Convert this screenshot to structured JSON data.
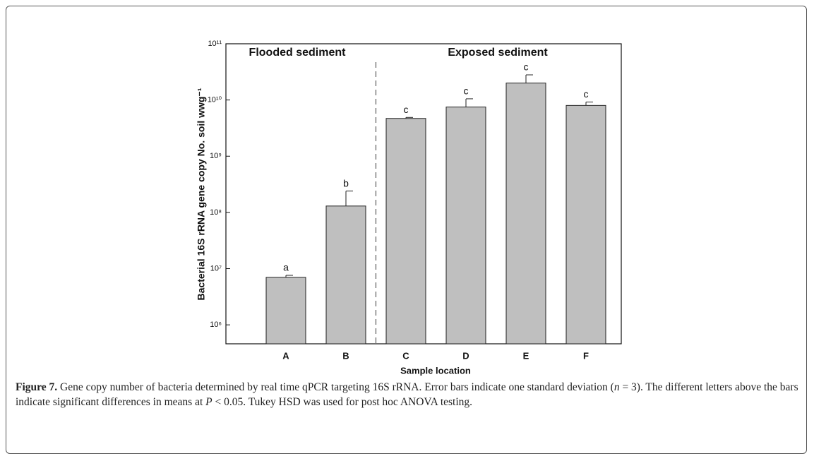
{
  "chart_data": {
    "type": "bar",
    "group_labels": [
      "Flooded sediment",
      "Exposed sediment"
    ],
    "x_label": "Sample location",
    "y_label": "Bacterial 16S rRNA gene copy No. soil wwg⁻¹",
    "categories": [
      "A",
      "B",
      "C",
      "D",
      "E",
      "F"
    ],
    "values": [
      7000000,
      130000000,
      4700000000,
      7500000000,
      20000000000,
      8000000000
    ],
    "errors": [
      600000,
      110000000,
      200000000,
      3000000000,
      8000000000,
      1200000000
    ],
    "annotations": [
      "a",
      "b",
      "c",
      "c",
      "c",
      "c"
    ],
    "color": "#bfbfbf",
    "log_scale": true,
    "ylim": [
      460000,
      100000000000
    ],
    "yticks": [
      {
        "value": 1000000,
        "label": "10⁶"
      },
      {
        "value": 10000000,
        "label": "10⁷"
      },
      {
        "value": 100000000,
        "label": "10⁸"
      },
      {
        "value": 1000000000,
        "label": "10⁹"
      },
      {
        "value": 10000000000,
        "label": "10¹⁰"
      },
      {
        "value": 100000000000,
        "label": "10¹¹"
      }
    ]
  },
  "caption": {
    "label": "Figure 7.",
    "parts": [
      "Gene copy number of bacteria determined by real time qPCR targeting 16S rRNA. Error bars indicate one standard deviation (",
      "n",
      " = 3). The different letters above the bars indicate significant differences in means at ",
      "P",
      " < 0.05. Tukey HSD was used for post hoc ANOVA testing."
    ]
  }
}
